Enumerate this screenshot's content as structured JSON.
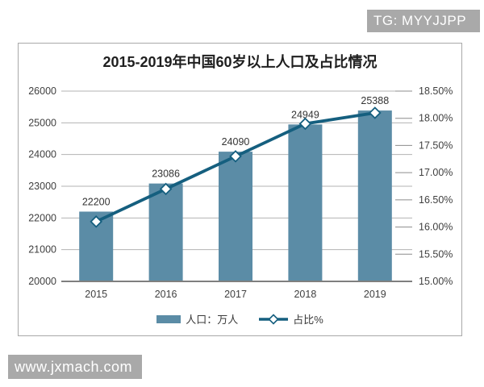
{
  "badges": {
    "telegram": "TG: MYYJJPP",
    "watermark": "www.jxmach.com"
  },
  "chart_data": {
    "type": "bar+line combo",
    "title": "2015-2019年中国60岁以上人口及占比情况",
    "categories": [
      "2015",
      "2016",
      "2017",
      "2018",
      "2019"
    ],
    "series": [
      {
        "name": "人口：万人",
        "type": "bar",
        "axis": "left",
        "values": [
          22200,
          23086,
          24090,
          24949,
          25388
        ],
        "data_labels": [
          "22200",
          "23086",
          "24090",
          "24949",
          "25388"
        ],
        "color": "#5b8ca6"
      },
      {
        "name": "占比%",
        "type": "line",
        "axis": "right",
        "marker": "diamond",
        "values": [
          16.1,
          16.7,
          17.3,
          17.9,
          18.1
        ],
        "color": "#155f7f",
        "marker_fill": "#ffffff"
      }
    ],
    "left_axis": {
      "min": 20000,
      "max": 26000,
      "step": 1000,
      "tick_labels": [
        "20000",
        "21000",
        "22000",
        "23000",
        "24000",
        "25000",
        "26000"
      ]
    },
    "right_axis": {
      "min": 15.0,
      "max": 18.5,
      "step": 0.5,
      "tick_labels": [
        "15.00%",
        "15.50%",
        "16.00%",
        "16.50%",
        "17.00%",
        "17.50%",
        "18.00%",
        "18.50%"
      ]
    },
    "grid": true,
    "legend_position": "bottom",
    "styling": {
      "grid_color": "#b3b3b3",
      "axis_line_color": "#7f7f7f",
      "tick_color": "#8c8c8c",
      "label_color": "#3f3f3f",
      "data_label_color": "#333333"
    }
  }
}
